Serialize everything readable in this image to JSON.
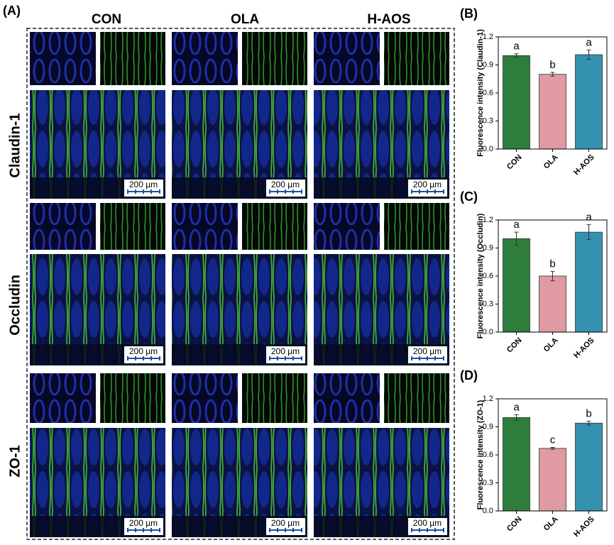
{
  "panel_label": "(A)",
  "columns": [
    "CON",
    "OLA",
    "H-AOS"
  ],
  "rows": [
    "Claudin-1",
    "Occludin",
    "ZO-1"
  ],
  "scale_bar": "200 µm",
  "chart_data": [
    {
      "type": "bar",
      "panel_label": "(B)",
      "ylabel": "Fluorescence intensity (Claudin-1)",
      "categories": [
        "CON",
        "OLA",
        "H-AOS"
      ],
      "values": [
        1.0,
        0.8,
        1.01
      ],
      "errors": [
        0.02,
        0.02,
        0.05
      ],
      "annotations": [
        "a",
        "b",
        "a"
      ],
      "colors": [
        "#2e7d3a",
        "#df9aa2",
        "#3591b0"
      ],
      "ylim": [
        0,
        1.2
      ],
      "yticks": [
        {
          "value": 0,
          "label": "0.0"
        },
        0.3,
        0.6,
        0.9,
        1.2
      ]
    },
    {
      "type": "bar",
      "panel_label": "(C)",
      "ylabel": "Fluorescence intensity (Occludin)",
      "categories": [
        "CON",
        "OLA",
        "H-AOS"
      ],
      "values": [
        1.0,
        0.6,
        1.07
      ],
      "errors": [
        0.07,
        0.05,
        0.08
      ],
      "annotations": [
        "a",
        "b",
        "a"
      ],
      "colors": [
        "#2e7d3a",
        "#df9aa2",
        "#3591b0"
      ],
      "ylim": [
        0,
        1.2
      ],
      "yticks": [
        {
          "value": 0,
          "label": "0.0"
        },
        0.3,
        0.6,
        0.9,
        1.2
      ]
    },
    {
      "type": "bar",
      "panel_label": "(D)",
      "ylabel": "Fluorescence intensity (ZO-1)",
      "categories": [
        "CON",
        "OLA",
        "H-AOS"
      ],
      "values": [
        1.0,
        0.67,
        0.94
      ],
      "errors": [
        0.03,
        0.01,
        0.02
      ],
      "annotations": [
        "a",
        "c",
        "b"
      ],
      "colors": [
        "#2e7d3a",
        "#df9aa2",
        "#3591b0"
      ],
      "ylim": [
        0,
        1.2
      ],
      "yticks": [
        {
          "value": 0,
          "label": "0.0"
        },
        0.3,
        0.6,
        0.9,
        1.2
      ]
    }
  ]
}
